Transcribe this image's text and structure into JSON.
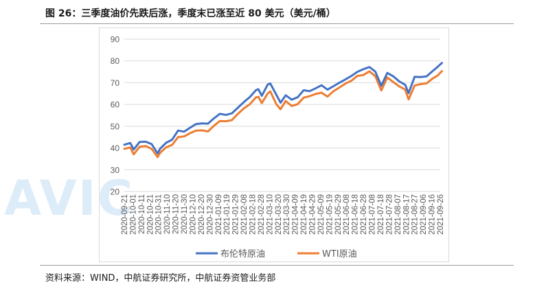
{
  "figure": {
    "title": "图 26：三季度油价先跌后涨，季度末已涨至近 80 美元（美元/桶）",
    "source": "资料来源：WIND，中航证券研究所，中航证券资管业务部",
    "watermark": "AVIC"
  },
  "colors": {
    "brent": "#4472C4",
    "wti": "#ED7D31",
    "grid": "#d9d9d9",
    "axis_text": "#595959"
  },
  "chart_data": {
    "type": "line",
    "title": "",
    "xlabel": "",
    "ylabel": "",
    "ylim": [
      20,
      90
    ],
    "yticks": [
      20,
      30,
      40,
      50,
      60,
      70,
      80,
      90
    ],
    "grid": "horizontal",
    "legend": "bottom",
    "x_tick_labels": [
      "2020-09-21",
      "2020-10-01",
      "2020-10-11",
      "2020-10-21",
      "2020-10-31",
      "2020-11-10",
      "2020-11-20",
      "2020-11-30",
      "2020-12-10",
      "2020-12-20",
      "2020-12-30",
      "2021-01-09",
      "2021-01-19",
      "2021-01-29",
      "2021-02-08",
      "2021-02-18",
      "2021-02-28",
      "2021-03-10",
      "2021-03-20",
      "2021-03-30",
      "2021-04-09",
      "2021-04-19",
      "2021-04-29",
      "2021-05-09",
      "2021-05-19",
      "2021-05-29",
      "2021-06-08",
      "2021-06-18",
      "2021-06-28",
      "2021-07-08",
      "2021-07-18",
      "2021-07-28",
      "2021-08-07",
      "2021-08-17",
      "2021-08-27",
      "2021-09-06",
      "2021-09-16",
      "2021-09-26"
    ],
    "series": [
      {
        "name": "布伦特原油",
        "color": "#4472C4",
        "x": [
          "2020-09-21",
          "2020-09-28",
          "2020-10-02",
          "2020-10-09",
          "2020-10-16",
          "2020-10-23",
          "2020-10-30",
          "2020-11-02",
          "2020-11-09",
          "2020-11-16",
          "2020-11-23",
          "2020-11-30",
          "2020-12-07",
          "2020-12-14",
          "2020-12-21",
          "2020-12-28",
          "2021-01-04",
          "2021-01-11",
          "2021-01-18",
          "2021-01-25",
          "2021-02-01",
          "2021-02-08",
          "2021-02-15",
          "2021-02-22",
          "2021-02-25",
          "2021-03-01",
          "2021-03-08",
          "2021-03-11",
          "2021-03-18",
          "2021-03-23",
          "2021-03-29",
          "2021-04-05",
          "2021-04-12",
          "2021-04-19",
          "2021-04-26",
          "2021-05-03",
          "2021-05-10",
          "2021-05-17",
          "2021-05-24",
          "2021-05-31",
          "2021-06-07",
          "2021-06-14",
          "2021-06-21",
          "2021-06-28",
          "2021-07-05",
          "2021-07-12",
          "2021-07-19",
          "2021-07-26",
          "2021-08-02",
          "2021-08-09",
          "2021-08-16",
          "2021-08-20",
          "2021-08-27",
          "2021-09-03",
          "2021-09-10",
          "2021-09-17",
          "2021-09-23",
          "2021-09-28"
        ],
        "values": [
          41.5,
          42.3,
          39.3,
          42.8,
          42.9,
          41.8,
          37.5,
          39.7,
          42.4,
          43.8,
          48.0,
          47.5,
          49.3,
          51.0,
          51.3,
          51.2,
          53.6,
          55.7,
          55.2,
          55.9,
          58.5,
          61.1,
          63.4,
          66.5,
          67.0,
          64.0,
          69.2,
          69.6,
          64.5,
          60.8,
          64.2,
          62.2,
          63.3,
          66.5,
          66.1,
          67.4,
          68.8,
          66.8,
          68.4,
          70.0,
          71.5,
          73.1,
          75.0,
          76.2,
          77.2,
          75.1,
          68.6,
          74.5,
          72.9,
          70.6,
          69.0,
          65.2,
          72.7,
          72.6,
          72.9,
          75.3,
          77.3,
          79.1
        ]
      },
      {
        "name": "WTI原油",
        "color": "#ED7D31",
        "x": [
          "2020-09-21",
          "2020-09-28",
          "2020-10-02",
          "2020-10-09",
          "2020-10-16",
          "2020-10-23",
          "2020-10-30",
          "2020-11-02",
          "2020-11-09",
          "2020-11-16",
          "2020-11-23",
          "2020-11-30",
          "2020-12-07",
          "2020-12-14",
          "2020-12-21",
          "2020-12-28",
          "2021-01-04",
          "2021-01-11",
          "2021-01-18",
          "2021-01-25",
          "2021-02-01",
          "2021-02-08",
          "2021-02-15",
          "2021-02-22",
          "2021-02-25",
          "2021-03-01",
          "2021-03-08",
          "2021-03-11",
          "2021-03-18",
          "2021-03-23",
          "2021-03-29",
          "2021-04-05",
          "2021-04-12",
          "2021-04-19",
          "2021-04-26",
          "2021-05-03",
          "2021-05-10",
          "2021-05-17",
          "2021-05-24",
          "2021-05-31",
          "2021-06-07",
          "2021-06-14",
          "2021-06-21",
          "2021-06-28",
          "2021-07-05",
          "2021-07-12",
          "2021-07-19",
          "2021-07-26",
          "2021-08-02",
          "2021-08-09",
          "2021-08-16",
          "2021-08-20",
          "2021-08-27",
          "2021-09-03",
          "2021-09-10",
          "2021-09-17",
          "2021-09-23",
          "2021-09-28"
        ],
        "values": [
          39.6,
          40.2,
          37.1,
          40.6,
          40.9,
          39.6,
          35.8,
          37.8,
          40.3,
          41.4,
          45.0,
          45.3,
          46.8,
          48.0,
          48.1,
          47.6,
          50.2,
          52.4,
          52.3,
          52.8,
          55.7,
          58.2,
          60.1,
          63.2,
          63.5,
          60.6,
          65.1,
          66.0,
          60.1,
          57.8,
          61.6,
          59.3,
          60.1,
          63.1,
          63.8,
          64.8,
          65.4,
          63.6,
          66.1,
          67.8,
          69.6,
          70.9,
          73.1,
          73.5,
          75.2,
          73.0,
          66.4,
          72.4,
          70.3,
          68.3,
          66.8,
          62.3,
          68.7,
          69.3,
          69.7,
          71.9,
          73.3,
          75.3
        ]
      }
    ]
  }
}
